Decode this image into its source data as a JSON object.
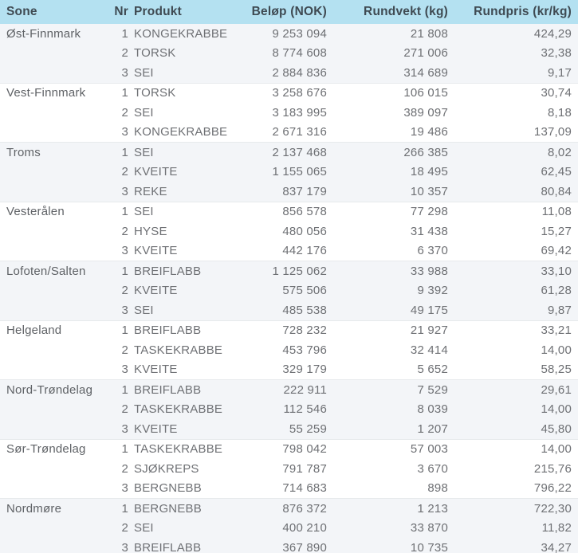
{
  "colors": {
    "header_bg": "#b4e1f1",
    "header_text": "#3f4a52",
    "stripe_bg": "#f3f5f8",
    "body_text": "#6e7074",
    "zone_text": "#5f6266",
    "bottom_border": "#b4e1f1",
    "group_divider": "#e7eaec"
  },
  "chart_data": {
    "type": "table",
    "title": "",
    "columns": [
      "Sone",
      "Nr",
      "Produkt",
      "Beløp (NOK)",
      "Rundvekt (kg)",
      "Rundpris (kr/kg)"
    ],
    "groups": [
      {
        "sone": "Øst-Finnmark",
        "rows": [
          {
            "nr": "1",
            "produkt": "KONGEKRABBE",
            "belop": "9 253 094",
            "rundvekt": "21 808",
            "rundpris": "424,29"
          },
          {
            "nr": "2",
            "produkt": "TORSK",
            "belop": "8 774 608",
            "rundvekt": "271 006",
            "rundpris": "32,38"
          },
          {
            "nr": "3",
            "produkt": "SEI",
            "belop": "2 884 836",
            "rundvekt": "314 689",
            "rundpris": "9,17"
          }
        ]
      },
      {
        "sone": "Vest-Finnmark",
        "rows": [
          {
            "nr": "1",
            "produkt": "TORSK",
            "belop": "3 258 676",
            "rundvekt": "106 015",
            "rundpris": "30,74"
          },
          {
            "nr": "2",
            "produkt": "SEI",
            "belop": "3 183 995",
            "rundvekt": "389 097",
            "rundpris": "8,18"
          },
          {
            "nr": "3",
            "produkt": "KONGEKRABBE",
            "belop": "2 671 316",
            "rundvekt": "19 486",
            "rundpris": "137,09"
          }
        ]
      },
      {
        "sone": "Troms",
        "rows": [
          {
            "nr": "1",
            "produkt": "SEI",
            "belop": "2 137 468",
            "rundvekt": "266 385",
            "rundpris": "8,02"
          },
          {
            "nr": "2",
            "produkt": "KVEITE",
            "belop": "1 155 065",
            "rundvekt": "18 495",
            "rundpris": "62,45"
          },
          {
            "nr": "3",
            "produkt": "REKE",
            "belop": "837 179",
            "rundvekt": "10 357",
            "rundpris": "80,84"
          }
        ]
      },
      {
        "sone": "Vesterålen",
        "rows": [
          {
            "nr": "1",
            "produkt": "SEI",
            "belop": "856 578",
            "rundvekt": "77 298",
            "rundpris": "11,08"
          },
          {
            "nr": "2",
            "produkt": "HYSE",
            "belop": "480 056",
            "rundvekt": "31 438",
            "rundpris": "15,27"
          },
          {
            "nr": "3",
            "produkt": "KVEITE",
            "belop": "442 176",
            "rundvekt": "6 370",
            "rundpris": "69,42"
          }
        ]
      },
      {
        "sone": "Lofoten/Salten",
        "rows": [
          {
            "nr": "1",
            "produkt": "BREIFLABB",
            "belop": "1 125 062",
            "rundvekt": "33 988",
            "rundpris": "33,10"
          },
          {
            "nr": "2",
            "produkt": "KVEITE",
            "belop": "575 506",
            "rundvekt": "9 392",
            "rundpris": "61,28"
          },
          {
            "nr": "3",
            "produkt": "SEI",
            "belop": "485 538",
            "rundvekt": "49 175",
            "rundpris": "9,87"
          }
        ]
      },
      {
        "sone": "Helgeland",
        "rows": [
          {
            "nr": "1",
            "produkt": "BREIFLABB",
            "belop": "728 232",
            "rundvekt": "21 927",
            "rundpris": "33,21"
          },
          {
            "nr": "2",
            "produkt": "TASKEKRABBE",
            "belop": "453 796",
            "rundvekt": "32 414",
            "rundpris": "14,00"
          },
          {
            "nr": "3",
            "produkt": "KVEITE",
            "belop": "329 179",
            "rundvekt": "5 652",
            "rundpris": "58,25"
          }
        ]
      },
      {
        "sone": "Nord-Trøndelag",
        "rows": [
          {
            "nr": "1",
            "produkt": "BREIFLABB",
            "belop": "222 911",
            "rundvekt": "7 529",
            "rundpris": "29,61"
          },
          {
            "nr": "2",
            "produkt": "TASKEKRABBE",
            "belop": "112 546",
            "rundvekt": "8 039",
            "rundpris": "14,00"
          },
          {
            "nr": "3",
            "produkt": "KVEITE",
            "belop": "55 259",
            "rundvekt": "1 207",
            "rundpris": "45,80"
          }
        ]
      },
      {
        "sone": "Sør-Trøndelag",
        "rows": [
          {
            "nr": "1",
            "produkt": "TASKEKRABBE",
            "belop": "798 042",
            "rundvekt": "57 003",
            "rundpris": "14,00"
          },
          {
            "nr": "2",
            "produkt": "SJØKREPS",
            "belop": "791 787",
            "rundvekt": "3 670",
            "rundpris": "215,76"
          },
          {
            "nr": "3",
            "produkt": "BERGNEBB",
            "belop": "714 683",
            "rundvekt": "898",
            "rundpris": "796,22"
          }
        ]
      },
      {
        "sone": "Nordmøre",
        "rows": [
          {
            "nr": "1",
            "produkt": "BERGNEBB",
            "belop": "876 372",
            "rundvekt": "1 213",
            "rundpris": "722,30"
          },
          {
            "nr": "2",
            "produkt": "SEI",
            "belop": "400 210",
            "rundvekt": "33 870",
            "rundpris": "11,82"
          },
          {
            "nr": "3",
            "produkt": "BREIFLABB",
            "belop": "367 890",
            "rundvekt": "10 735",
            "rundpris": "34,27"
          }
        ]
      }
    ]
  }
}
